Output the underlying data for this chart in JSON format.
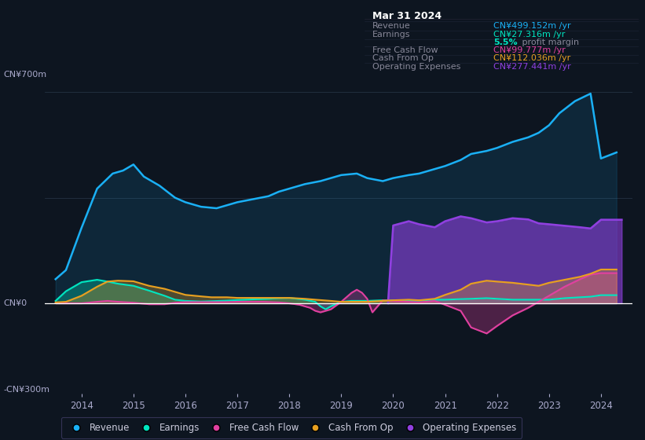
{
  "bg_color": "#0d1520",
  "plot_bg_color": "#0d1520",
  "ylim": [
    -300,
    750
  ],
  "xlim": [
    2013.3,
    2024.6
  ],
  "x_ticks": [
    2014,
    2015,
    2016,
    2017,
    2018,
    2019,
    2020,
    2021,
    2022,
    2023,
    2024
  ],
  "revenue_color": "#1ab0f5",
  "earnings_color": "#00e5c0",
  "fcf_color": "#e040a0",
  "cashfromop_color": "#e8a020",
  "opex_color": "#9040e0",
  "infobox_bg": "#000000",
  "infobox_border": "#333355",
  "infobox_title": "Mar 31 2024",
  "infobox_label_color": "#888899",
  "infobox_rows": [
    {
      "label": "Revenue",
      "value": "CN¥499.152m /yr",
      "color": "#1ab0f5"
    },
    {
      "label": "Earnings",
      "value": "CN¥27.316m /yr",
      "color": "#00e5c0"
    },
    {
      "label": "",
      "sub_value": "5.5%",
      "sub_rest": " profit margin",
      "color": "#888899"
    },
    {
      "label": "Free Cash Flow",
      "value": "CN¥99.777m /yr",
      "color": "#e040a0"
    },
    {
      "label": "Cash From Op",
      "value": "CN¥112.036m /yr",
      "color": "#e8a020"
    },
    {
      "label": "Operating Expenses",
      "value": "CN¥277.441m /yr",
      "color": "#9040e0"
    }
  ],
  "revenue_x": [
    2013.5,
    2013.7,
    2014.0,
    2014.3,
    2014.6,
    2014.8,
    2015.0,
    2015.2,
    2015.5,
    2015.8,
    2016.0,
    2016.3,
    2016.6,
    2016.8,
    2017.0,
    2017.3,
    2017.6,
    2017.8,
    2018.0,
    2018.3,
    2018.6,
    2018.8,
    2019.0,
    2019.3,
    2019.5,
    2019.8,
    2020.0,
    2020.3,
    2020.5,
    2020.8,
    2021.0,
    2021.3,
    2021.5,
    2021.8,
    2022.0,
    2022.3,
    2022.6,
    2022.8,
    2023.0,
    2023.2,
    2023.5,
    2023.8,
    2024.0,
    2024.3
  ],
  "revenue_y": [
    80,
    110,
    250,
    380,
    430,
    440,
    460,
    420,
    390,
    350,
    335,
    320,
    315,
    325,
    335,
    345,
    355,
    370,
    380,
    395,
    405,
    415,
    425,
    430,
    415,
    405,
    415,
    425,
    430,
    445,
    455,
    475,
    495,
    505,
    515,
    535,
    550,
    565,
    590,
    630,
    670,
    695,
    480,
    500
  ],
  "earnings_x": [
    2013.5,
    2013.7,
    2014.0,
    2014.3,
    2014.5,
    2014.7,
    2015.0,
    2015.3,
    2015.6,
    2015.8,
    2016.0,
    2016.3,
    2016.5,
    2016.8,
    2017.0,
    2017.3,
    2017.6,
    2017.8,
    2018.0,
    2018.3,
    2018.5,
    2018.6,
    2018.7,
    2018.8,
    2019.0,
    2019.2,
    2019.5,
    2019.8,
    2020.0,
    2020.3,
    2020.6,
    2020.8,
    2021.0,
    2021.3,
    2021.5,
    2021.8,
    2022.0,
    2022.3,
    2022.6,
    2022.8,
    2023.0,
    2023.3,
    2023.6,
    2023.8,
    2024.0,
    2024.3
  ],
  "earnings_y": [
    8,
    40,
    70,
    78,
    72,
    65,
    58,
    42,
    25,
    12,
    8,
    6,
    7,
    9,
    11,
    13,
    15,
    17,
    18,
    12,
    5,
    -10,
    -20,
    -10,
    5,
    8,
    8,
    10,
    10,
    8,
    10,
    12,
    12,
    14,
    15,
    17,
    15,
    12,
    12,
    12,
    12,
    17,
    20,
    22,
    27,
    27
  ],
  "fcf_x": [
    2013.5,
    2013.7,
    2014.0,
    2014.3,
    2014.5,
    2014.7,
    2015.0,
    2015.3,
    2015.6,
    2015.8,
    2016.0,
    2016.3,
    2016.5,
    2016.8,
    2017.0,
    2017.3,
    2017.5,
    2017.8,
    2018.0,
    2018.2,
    2018.4,
    2018.5,
    2018.6,
    2018.7,
    2018.8,
    2019.0,
    2019.1,
    2019.2,
    2019.3,
    2019.4,
    2019.5,
    2019.6,
    2019.8,
    2020.0,
    2020.3,
    2020.5,
    2020.8,
    2021.0,
    2021.3,
    2021.5,
    2021.8,
    2022.0,
    2022.3,
    2022.6,
    2022.8,
    2023.0,
    2023.3,
    2023.6,
    2023.8,
    2024.0,
    2024.3
  ],
  "fcf_y": [
    0,
    0,
    0,
    5,
    8,
    5,
    2,
    -3,
    -3,
    2,
    4,
    4,
    4,
    4,
    5,
    5,
    5,
    3,
    0,
    -5,
    -15,
    -25,
    -30,
    -25,
    -20,
    5,
    20,
    35,
    45,
    35,
    15,
    -30,
    10,
    8,
    5,
    3,
    8,
    -5,
    -25,
    -80,
    -100,
    -75,
    -40,
    -15,
    5,
    25,
    55,
    80,
    95,
    100,
    100
  ],
  "cop_x": [
    2013.5,
    2013.7,
    2014.0,
    2014.3,
    2014.5,
    2014.7,
    2015.0,
    2015.3,
    2015.6,
    2015.8,
    2016.0,
    2016.3,
    2016.5,
    2016.8,
    2017.0,
    2017.3,
    2017.5,
    2017.8,
    2018.0,
    2018.3,
    2018.5,
    2018.8,
    2019.0,
    2019.3,
    2019.5,
    2019.8,
    2020.0,
    2020.3,
    2020.5,
    2020.8,
    2021.0,
    2021.3,
    2021.5,
    2021.8,
    2022.0,
    2022.3,
    2022.6,
    2022.8,
    2023.0,
    2023.3,
    2023.6,
    2023.8,
    2024.0,
    2024.3
  ],
  "cop_y": [
    3,
    5,
    25,
    55,
    72,
    75,
    73,
    58,
    48,
    38,
    28,
    23,
    20,
    20,
    18,
    18,
    18,
    18,
    18,
    15,
    12,
    8,
    5,
    5,
    5,
    8,
    10,
    12,
    10,
    15,
    28,
    45,
    65,
    75,
    72,
    68,
    62,
    58,
    68,
    78,
    88,
    98,
    112,
    112
  ],
  "opex_x": [
    2019.9,
    2020.0,
    2020.3,
    2020.5,
    2020.8,
    2021.0,
    2021.3,
    2021.5,
    2021.8,
    2022.0,
    2022.3,
    2022.6,
    2022.8,
    2023.0,
    2023.3,
    2023.6,
    2023.8,
    2024.0,
    2024.3,
    2024.4
  ],
  "opex_y": [
    0,
    258,
    272,
    262,
    252,
    272,
    288,
    282,
    268,
    272,
    282,
    278,
    265,
    262,
    257,
    252,
    248,
    277,
    277,
    277
  ]
}
